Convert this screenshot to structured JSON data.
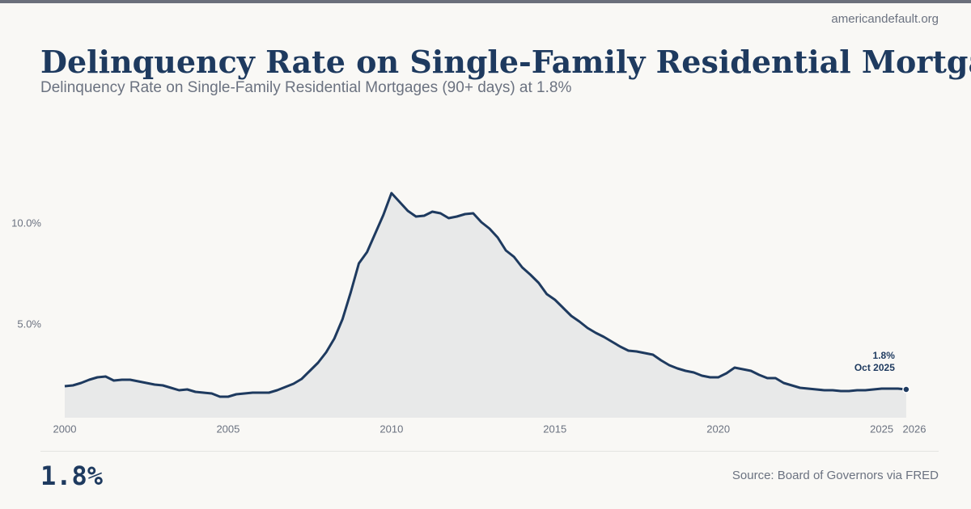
{
  "site": "americandefault.org",
  "headline_value": "1.8%",
  "source": "Source: Board of Governors via FRED",
  "chart_data": {
    "type": "area",
    "title": "Delinquency Rate on Single-Family Residential Mortgages",
    "subtitle": "Delinquency Rate on Single-Family Residential Mortgages (90+ days) at 1.8%",
    "annotations": [
      "1.8%",
      "Oct 2025"
    ],
    "color": "#1e3a5f",
    "fill": "#e8e9e9",
    "grid": false,
    "xlim": [
      2000,
      2026
    ],
    "xticks": [
      2000,
      2005,
      2010,
      2015,
      2020,
      2025,
      2026
    ],
    "ylim": [
      0.4,
      15
    ],
    "yticks": [
      {
        "value": 5,
        "label": "5.0%"
      },
      {
        "value": 10,
        "label": "10.0%"
      }
    ],
    "x": [
      2000,
      2000.25,
      2000.5,
      2000.75,
      2001,
      2001.25,
      2001.5,
      2001.75,
      2002,
      2002.25,
      2002.5,
      2002.75,
      2003,
      2003.25,
      2003.5,
      2003.75,
      2004,
      2004.25,
      2004.5,
      2004.75,
      2005,
      2005.25,
      2005.5,
      2005.75,
      2006,
      2006.25,
      2006.5,
      2006.75,
      2007,
      2007.25,
      2007.5,
      2007.75,
      2008,
      2008.25,
      2008.5,
      2008.75,
      2009,
      2009.25,
      2009.5,
      2009.75,
      2010,
      2010.25,
      2010.5,
      2010.75,
      2011,
      2011.25,
      2011.5,
      2011.75,
      2012,
      2012.25,
      2012.5,
      2012.75,
      2013,
      2013.25,
      2013.5,
      2013.75,
      2014,
      2014.25,
      2014.5,
      2014.75,
      2015,
      2015.25,
      2015.5,
      2015.75,
      2016,
      2016.25,
      2016.5,
      2016.75,
      2017,
      2017.25,
      2017.5,
      2017.75,
      2018,
      2018.25,
      2018.5,
      2018.75,
      2019,
      2019.25,
      2019.5,
      2019.75,
      2020,
      2020.25,
      2020.5,
      2020.75,
      2021,
      2021.25,
      2021.5,
      2021.75,
      2022,
      2022.25,
      2022.5,
      2022.75,
      2023,
      2023.25,
      2023.5,
      2023.75,
      2024,
      2024.25,
      2024.5,
      2024.75,
      2025,
      2025.25,
      2025.5,
      2025.75
    ],
    "values": [
      1.96,
      2.0,
      2.12,
      2.28,
      2.4,
      2.44,
      2.24,
      2.28,
      2.28,
      2.2,
      2.12,
      2.04,
      2.0,
      1.88,
      1.76,
      1.8,
      1.68,
      1.64,
      1.6,
      1.44,
      1.44,
      1.56,
      1.6,
      1.64,
      1.64,
      1.64,
      1.76,
      1.92,
      2.08,
      2.32,
      2.72,
      3.12,
      3.64,
      4.32,
      5.28,
      6.6,
      8.04,
      8.6,
      9.52,
      10.44,
      11.52,
      11.08,
      10.64,
      10.36,
      10.4,
      10.6,
      10.52,
      10.28,
      10.36,
      10.48,
      10.52,
      10.08,
      9.76,
      9.32,
      8.68,
      8.36,
      7.84,
      7.48,
      7.08,
      6.52,
      6.24,
      5.84,
      5.44,
      5.16,
      4.84,
      4.6,
      4.4,
      4.16,
      3.92,
      3.72,
      3.68,
      3.6,
      3.52,
      3.24,
      3.0,
      2.84,
      2.72,
      2.64,
      2.48,
      2.4,
      2.4,
      2.6,
      2.88,
      2.8,
      2.72,
      2.52,
      2.36,
      2.36,
      2.12,
      2.0,
      1.88,
      1.84,
      1.8,
      1.76,
      1.76,
      1.72,
      1.72,
      1.76,
      1.76,
      1.8,
      1.84,
      1.84,
      1.84,
      1.8
    ]
  }
}
